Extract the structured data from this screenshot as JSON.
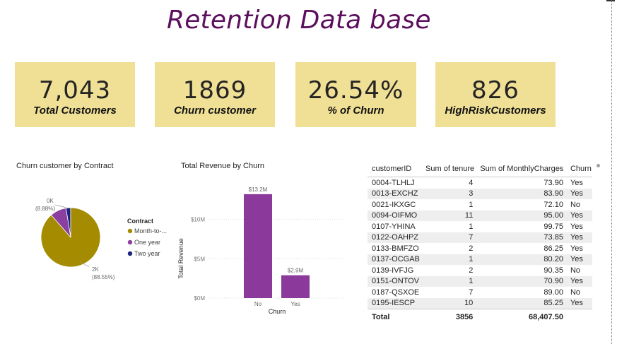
{
  "report": {
    "title": "Retention Data base"
  },
  "kpis": [
    {
      "value": "7,043",
      "label": "Total Customers"
    },
    {
      "value": "1869",
      "label": "Churn customer"
    },
    {
      "value": "26.54%",
      "label": "% of Churn"
    },
    {
      "value": "826",
      "label": "HighRiskCustomers"
    }
  ],
  "pie_visual": {
    "title": "Churn customer by Contract",
    "legend_title": "Contract",
    "labels": {
      "small_value": "0K",
      "small_pct": "(8.88%)",
      "large_value": "2K",
      "large_pct": "(88.55%)"
    }
  },
  "bar_visual": {
    "title": "Total Revenue by Churn",
    "yticks": [
      "$0M",
      "$5M",
      "$10M"
    ],
    "data_labels": [
      "$13.2M",
      "$2.9M"
    ]
  },
  "chart_data": [
    {
      "type": "pie",
      "title": "Churn customer by Contract",
      "legend_title": "Contract",
      "legend_position": "right",
      "colors": [
        "#a48b00",
        "#8b3fa0",
        "#1a237e"
      ],
      "series": [
        {
          "name": "Month-to-...",
          "value": 88.55,
          "color": "#a48b00"
        },
        {
          "name": "One year",
          "value": 8.88,
          "color": "#8b3fa0"
        },
        {
          "name": "Two year",
          "value": 2.57,
          "color": "#1a237e"
        }
      ]
    },
    {
      "type": "bar",
      "title": "Total Revenue by Churn",
      "xlabel": "Churn",
      "ylabel": "Total Revenue",
      "categories": [
        "No",
        "Yes"
      ],
      "values": [
        13.2,
        2.9
      ],
      "units": "$M",
      "ylim": [
        0,
        14
      ],
      "grid": true,
      "color": "#8b3a9c"
    }
  ],
  "table": {
    "columns": [
      "customerID",
      "Sum of tenure",
      "Sum of MonthlyCharges",
      "Churn"
    ],
    "rows": [
      [
        "0004-TLHLJ",
        "4",
        "73.90",
        "Yes"
      ],
      [
        "0013-EXCHZ",
        "3",
        "83.90",
        "Yes"
      ],
      [
        "0021-IKXGC",
        "1",
        "72.10",
        "No"
      ],
      [
        "0094-OIFMO",
        "11",
        "95.00",
        "Yes"
      ],
      [
        "0107-YHINA",
        "1",
        "99.75",
        "Yes"
      ],
      [
        "0122-OAHPZ",
        "7",
        "73.85",
        "Yes"
      ],
      [
        "0133-BMFZO",
        "2",
        "86.25",
        "Yes"
      ],
      [
        "0137-OCGAB",
        "1",
        "80.20",
        "Yes"
      ],
      [
        "0139-IVFJG",
        "2",
        "90.35",
        "No"
      ],
      [
        "0151-ONTOV",
        "1",
        "70.90",
        "Yes"
      ],
      [
        "0187-QSXOE",
        "7",
        "89.00",
        "No"
      ],
      [
        "0195-IESCP",
        "10",
        "85.25",
        "Yes"
      ]
    ],
    "total": [
      "Total",
      "3856",
      "68,407.50",
      ""
    ]
  }
}
